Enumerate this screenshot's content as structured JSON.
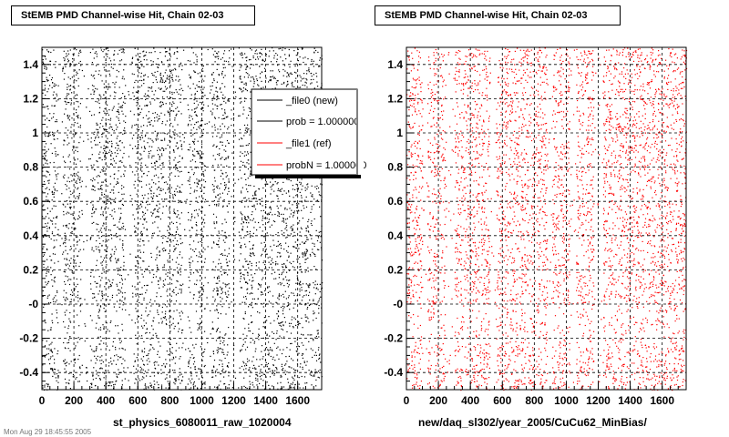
{
  "footer_text": "Mon Aug 29 18:45:55 2005",
  "legend": {
    "entries": [
      {
        "label": "_file0 (new)",
        "color": "#000000"
      },
      {
        "label": "prob = 1.000000",
        "color": "#000000"
      },
      {
        "label": "_file1 (ref)",
        "color": "#ff0000"
      },
      {
        "label": "probN = 1.000000",
        "color": "#ff0000"
      }
    ]
  },
  "chart_data": [
    {
      "type": "scatter",
      "title": "StEMB PMD Channel-wise Hit, Chain 02-03",
      "xlabel": "st_physics_6080011_raw_1020004",
      "ylabel": "",
      "xlim": [
        0,
        1750
      ],
      "ylim": [
        -0.5,
        1.5
      ],
      "x_ticks": [
        0,
        200,
        400,
        600,
        800,
        1000,
        1200,
        1400,
        1600
      ],
      "y_ticks": [
        -0.4,
        -0.2,
        0,
        0.2,
        0.4,
        0.6,
        0.8,
        1,
        1.2,
        1.4
      ],
      "y_tick_labels": [
        "-0.4",
        "-0.2",
        "-0",
        "0.2",
        "0.4",
        "0.6",
        "0.8",
        "1",
        "1.2",
        "1.4"
      ],
      "grid": true,
      "series": [
        {
          "name": "_file0 (new)",
          "color": "#000000",
          "n_points": 5200,
          "x_gaps": [
            [
              100,
              130
            ],
            [
              240,
              300
            ],
            [
              520,
              560
            ],
            [
              880,
              910
            ],
            [
              1020,
              1060
            ],
            [
              1170,
              1230
            ]
          ],
          "density_band": [
            -0.25,
            0.0
          ]
        }
      ]
    },
    {
      "type": "scatter",
      "title": "StEMB PMD Channel-wise Hit, Chain 02-03",
      "xlabel": "new/daq_sl302/year_2005/CuCu62_MinBias/",
      "ylabel": "",
      "xlim": [
        0,
        1750
      ],
      "ylim": [
        -0.5,
        1.5
      ],
      "x_ticks": [
        0,
        200,
        400,
        600,
        800,
        1000,
        1200,
        1400,
        1600
      ],
      "y_ticks": [
        -0.4,
        -0.2,
        0,
        0.2,
        0.4,
        0.6,
        0.8,
        1,
        1.2,
        1.4
      ],
      "y_tick_labels": [
        "-0.4",
        "-0.2",
        "-0",
        "0.2",
        "0.4",
        "0.6",
        "0.8",
        "1",
        "1.2",
        "1.4"
      ],
      "grid": true,
      "series": [
        {
          "name": "_file1 (ref)",
          "color": "#ff0000",
          "n_points": 5200,
          "x_gaps": [
            [
              100,
              130
            ],
            [
              240,
              300
            ],
            [
              520,
              560
            ],
            [
              880,
              910
            ],
            [
              1020,
              1060
            ],
            [
              1170,
              1230
            ]
          ],
          "density_band": [
            -0.25,
            0.0
          ]
        }
      ]
    }
  ]
}
